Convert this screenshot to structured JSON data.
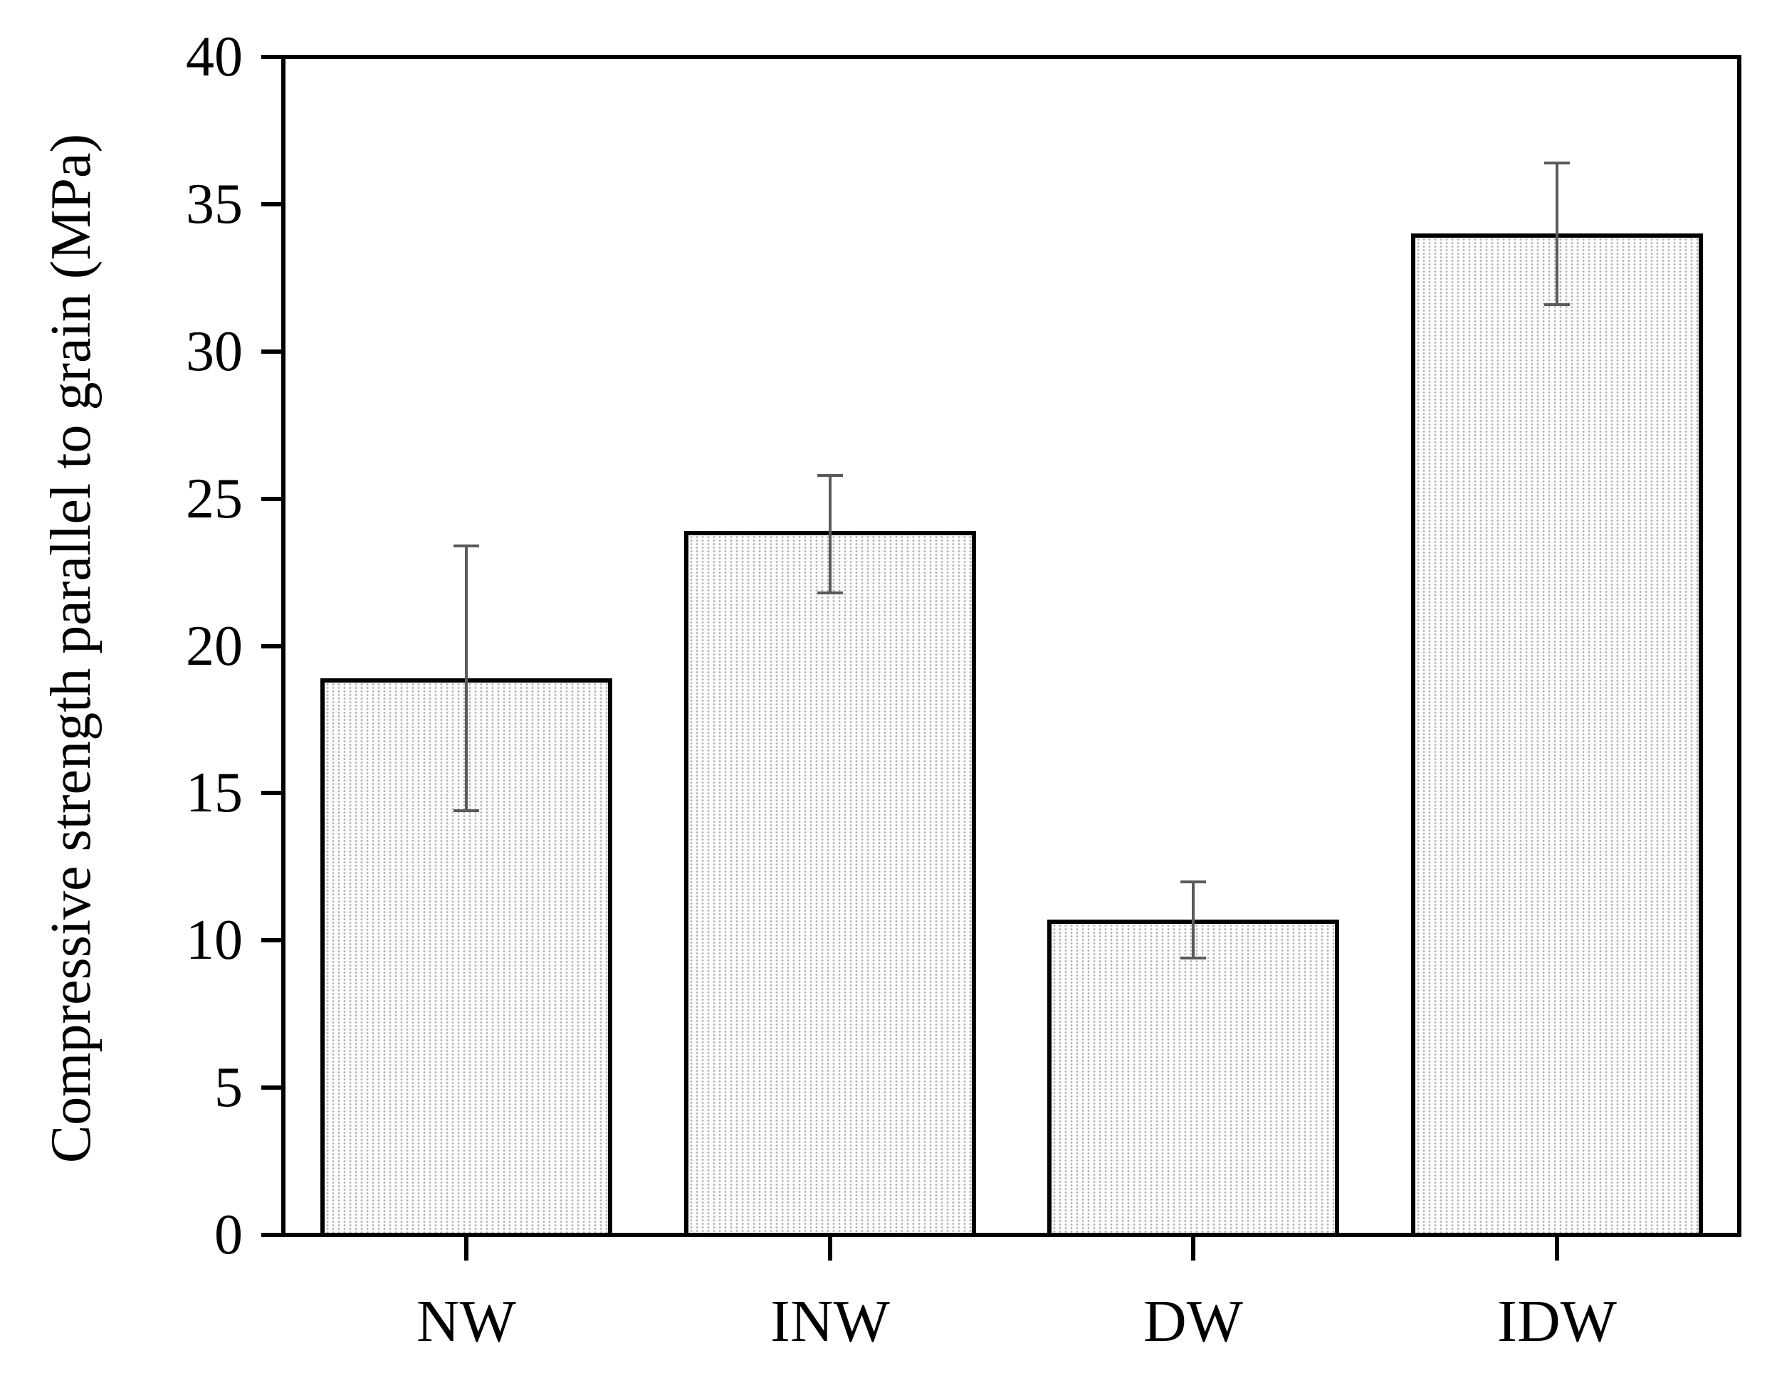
{
  "chart_data": {
    "type": "bar",
    "title": "",
    "xlabel": "",
    "ylabel": "Compressive strength parallel to grain (MPa)",
    "categories": [
      "NW",
      "INW",
      "DW",
      "IDW"
    ],
    "values": [
      18.9,
      23.9,
      10.7,
      34.0
    ],
    "error_low": [
      14.4,
      21.8,
      9.4,
      31.6
    ],
    "error_high": [
      23.4,
      25.8,
      12.0,
      36.4
    ],
    "ylim": [
      0,
      40
    ],
    "ytick_step": 5,
    "ytick_labels": [
      "0",
      "5",
      "10",
      "15",
      "20",
      "25",
      "30",
      "35",
      "40"
    ],
    "grid": false,
    "legend": null,
    "bar_fill_style": "light-gray-stipple-dots",
    "bar_fill_base_color": "#fdfdfd",
    "bar_dot_color": "#b4b4b4",
    "bar_edge_color": "#000000",
    "error_bar_color": "#5a5a5a",
    "axis_color": "#000000",
    "text_color": "#000000"
  }
}
